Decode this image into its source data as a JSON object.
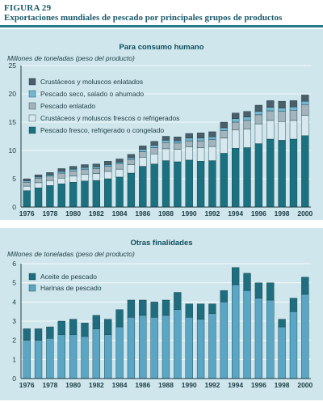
{
  "figure": {
    "label": "FIGURA 29",
    "title": "Exportaciones mundiales de pescado por principales grupos de productos"
  },
  "colors": {
    "accent": "#2b7a8a",
    "panel_bg": "#cfe6ec",
    "fresh_frozen": "#1b7180",
    "crustacean_fresh": "#d7e8ee",
    "canned": "#a4b3bc",
    "dried_salted": "#74b6cf",
    "crustacean_prepared": "#4b5e6a",
    "fish_meal": "#5ba6c4",
    "fish_oil": "#1f6d7e"
  },
  "chart_data": [
    {
      "type": "bar",
      "stacked": true,
      "title": "Para consumo humano",
      "ylabel": "Millones de toneladas (peso del producto)",
      "xlabel": "",
      "ylim": [
        0,
        25
      ],
      "yticks": [
        0,
        5,
        10,
        15,
        20,
        25
      ],
      "x_tick_labels": [
        "1976",
        "1978",
        "1980",
        "1982",
        "1984",
        "1986",
        "1988",
        "1990",
        "1992",
        "1994",
        "1996",
        "1998",
        "2000"
      ],
      "legend_position": "top-left",
      "categories": [
        "1976",
        "1977",
        "1978",
        "1979",
        "1980",
        "1981",
        "1982",
        "1983",
        "1984",
        "1985",
        "1986",
        "1987",
        "1988",
        "1989",
        "1990",
        "1991",
        "1992",
        "1993",
        "1994",
        "1995",
        "1996",
        "1997",
        "1998",
        "1999",
        "2000"
      ],
      "series": [
        {
          "name": "Pescado fresco, refrigerado o congelado",
          "color_key": "fresh_frozen",
          "values": [
            2.9,
            3.4,
            3.8,
            4.1,
            4.4,
            4.6,
            4.7,
            5.0,
            5.3,
            6.0,
            7.2,
            7.6,
            8.2,
            8.0,
            8.3,
            8.1,
            8.2,
            9.5,
            10.4,
            10.5,
            11.2,
            12.0,
            11.8,
            12.0,
            12.6
          ]
        },
        {
          "name": "Crustáceos y moluscos frescos o refrigerados",
          "color_key": "crustacean_fresh",
          "values": [
            0.8,
            0.9,
            0.9,
            1.0,
            1.1,
            1.2,
            1.2,
            1.3,
            1.4,
            1.5,
            1.6,
            1.8,
            2.1,
            2.2,
            2.3,
            2.4,
            2.5,
            2.7,
            3.2,
            3.3,
            3.5,
            3.3,
            3.3,
            3.3,
            3.6
          ]
        },
        {
          "name": "Pescado enlatado",
          "color_key": "canned",
          "values": [
            0.7,
            0.8,
            0.8,
            0.9,
            0.9,
            0.9,
            0.9,
            0.9,
            0.9,
            0.9,
            1.0,
            1.1,
            1.1,
            1.1,
            1.1,
            1.2,
            1.2,
            1.3,
            1.4,
            1.5,
            1.6,
            1.7,
            1.8,
            1.8,
            1.9
          ]
        },
        {
          "name": "Pescado seco, salado o ahumado",
          "color_key": "dried_salted",
          "values": [
            0.2,
            0.2,
            0.2,
            0.3,
            0.3,
            0.3,
            0.3,
            0.3,
            0.3,
            0.3,
            0.4,
            0.4,
            0.4,
            0.4,
            0.5,
            0.5,
            0.5,
            0.5,
            0.6,
            0.6,
            0.6,
            0.6,
            0.6,
            0.6,
            0.6
          ]
        },
        {
          "name": "Crustáceos y moluscos enlatados",
          "color_key": "crustacean_prepared",
          "values": [
            0.4,
            0.4,
            0.4,
            0.5,
            0.5,
            0.5,
            0.5,
            0.6,
            0.6,
            0.6,
            0.6,
            0.7,
            0.7,
            0.7,
            0.8,
            0.9,
            0.9,
            1.0,
            1.0,
            1.0,
            1.1,
            1.2,
            1.2,
            1.1,
            1.1
          ]
        }
      ]
    },
    {
      "type": "bar",
      "stacked": true,
      "title": "Otras finalidades",
      "ylabel": "Millones de toneladas (peso del producto)",
      "xlabel": "",
      "ylim": [
        0,
        6
      ],
      "yticks": [
        0,
        1,
        2,
        3,
        4,
        5,
        6
      ],
      "x_tick_labels": [
        "1976",
        "1978",
        "1980",
        "1982",
        "1984",
        "1986",
        "1988",
        "1990",
        "1992",
        "1994",
        "1996",
        "1998",
        "2000"
      ],
      "legend_position": "top-left",
      "categories": [
        "1976",
        "1977",
        "1978",
        "1979",
        "1980",
        "1981",
        "1982",
        "1983",
        "1984",
        "1985",
        "1986",
        "1987",
        "1988",
        "1989",
        "1990",
        "1991",
        "1992",
        "1993",
        "1994",
        "1995",
        "1996",
        "1997",
        "1998",
        "1999",
        "2000"
      ],
      "series": [
        {
          "name": "Harinas de pescado",
          "color_key": "fish_meal",
          "values": [
            2.0,
            2.0,
            2.1,
            2.3,
            2.3,
            2.2,
            2.6,
            2.3,
            2.7,
            3.2,
            3.3,
            3.2,
            3.3,
            3.6,
            3.2,
            3.1,
            3.4,
            4.0,
            4.9,
            4.6,
            4.2,
            4.1,
            2.7,
            3.5,
            4.4
          ]
        },
        {
          "name": "Aceite de pescado",
          "color_key": "fish_oil",
          "values": [
            0.6,
            0.6,
            0.6,
            0.7,
            0.8,
            0.7,
            0.7,
            0.8,
            0.9,
            0.9,
            0.8,
            0.8,
            0.8,
            0.9,
            0.7,
            0.8,
            0.5,
            0.6,
            0.9,
            0.9,
            0.8,
            0.9,
            0.4,
            0.7,
            0.9
          ]
        }
      ]
    }
  ]
}
